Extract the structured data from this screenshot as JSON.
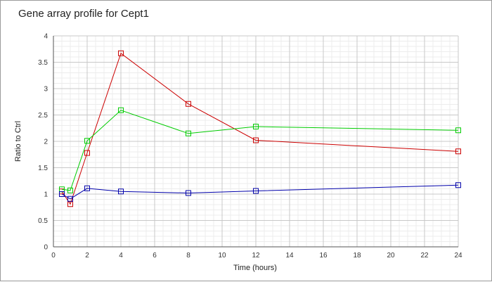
{
  "chart_data": {
    "type": "line",
    "title": "Gene array profile for Cept1",
    "xlabel": "Time (hours)",
    "ylabel": "Ratio to Ctrl",
    "xlim": [
      0,
      24
    ],
    "ylim": [
      0,
      4
    ],
    "xticks": [
      "0",
      "2",
      "4",
      "6",
      "8",
      "10",
      "12",
      "14",
      "16",
      "18",
      "20",
      "22",
      "24"
    ],
    "yticks": [
      "0",
      "0.5",
      "1",
      "1.5",
      "2",
      "2.5",
      "3",
      "3.5",
      "4"
    ],
    "grid": true,
    "legend": "none",
    "marker": "square",
    "series": [
      {
        "color": "#cc0000",
        "x": [
          0.5,
          1,
          2,
          4,
          8,
          12,
          24
        ],
        "y": [
          1.05,
          0.81,
          1.78,
          3.67,
          2.71,
          2.02,
          1.81
        ]
      },
      {
        "color": "#00cc00",
        "x": [
          0.5,
          1,
          2,
          4,
          8,
          12,
          24
        ],
        "y": [
          1.09,
          1.07,
          2.01,
          2.59,
          2.15,
          2.28,
          2.21
        ]
      },
      {
        "color": "#0000aa",
        "x": [
          0.5,
          1,
          2,
          4,
          8,
          12,
          24
        ],
        "y": [
          1.0,
          0.91,
          1.11,
          1.05,
          1.02,
          1.06,
          1.17
        ]
      }
    ]
  }
}
